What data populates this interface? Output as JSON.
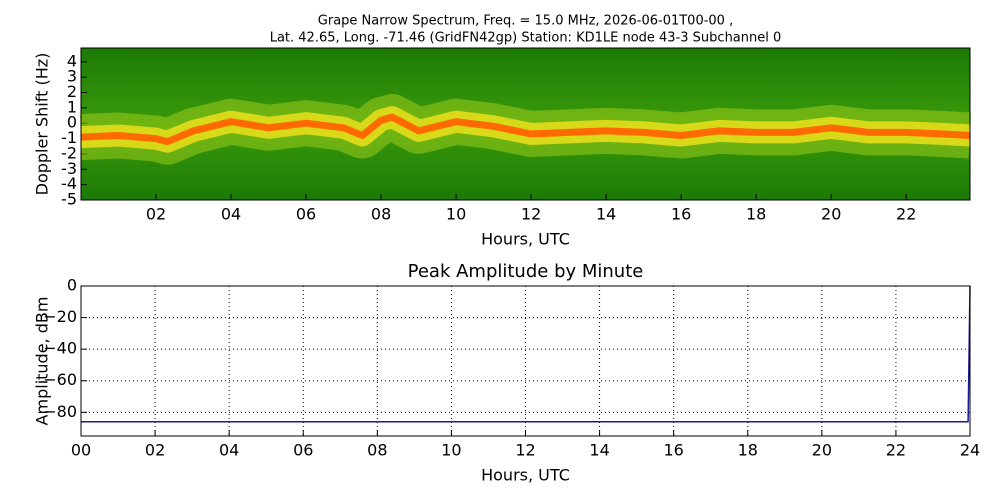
{
  "chart_data": [
    {
      "type": "spectrogram",
      "title": "Grape Narrow Spectrum, Freq. = 15.0 MHz, 2026-06-01T00-00 ,",
      "subtitle": "Lat.  42.65, Long. -71.46 (GridFN42gp) Station: KD1LE node 43-3 Subchannel 0",
      "x_label": "Hours, UTC",
      "y_label": "Doppler Shift (Hz)",
      "x": [
        0,
        1,
        2,
        2.3,
        3,
        4,
        5,
        6,
        7,
        7.5,
        8,
        8.3,
        9,
        10,
        11,
        12,
        13,
        14,
        15,
        16,
        17,
        18,
        19,
        20,
        21,
        22,
        23,
        23.7
      ],
      "values": [
        -0.9,
        -0.8,
        -1.0,
        -1.2,
        -0.5,
        0.1,
        -0.3,
        0,
        -0.3,
        -0.8,
        0.2,
        0.4,
        -0.5,
        0.1,
        -0.2,
        -0.7,
        -0.6,
        -0.5,
        -0.6,
        -0.8,
        -0.5,
        -0.6,
        -0.6,
        -0.3,
        -0.6,
        -0.6,
        -0.7,
        -0.8
      ],
      "color": "#ff6a00",
      "xlim": [
        0,
        23.7
      ],
      "ylim": [
        -5,
        4.9
      ],
      "xticks": [
        {
          "value": 2,
          "label": "02"
        },
        {
          "value": 4,
          "label": "04"
        },
        {
          "value": 6,
          "label": "06"
        },
        {
          "value": 8,
          "label": "08"
        },
        10,
        12,
        14,
        16,
        18,
        20,
        22
      ],
      "yticks": [
        4,
        3,
        2,
        1,
        0,
        -1,
        -2,
        -3,
        -4,
        -5
      ],
      "grid": false
    },
    {
      "type": "line",
      "title": "Peak Amplitude by Minute",
      "x_label": "Hours, UTC",
      "y_label": "Amplitude, dBm",
      "x": [
        0,
        6,
        12,
        18,
        23.95,
        24
      ],
      "values": [
        -86,
        -86,
        -86,
        -86,
        -86,
        0
      ],
      "color": "#1a1a8c",
      "xlim": [
        0,
        24
      ],
      "ylim": [
        -95,
        0
      ],
      "xticks": [
        {
          "value": 0,
          "label": "00"
        },
        {
          "value": 2,
          "label": "02"
        },
        {
          "value": 4,
          "label": "04"
        },
        {
          "value": 6,
          "label": "06"
        },
        {
          "value": 8,
          "label": "08"
        },
        10,
        12,
        14,
        16,
        18,
        20,
        22,
        24
      ],
      "yticks": [
        0,
        {
          "value": -20,
          "label": "−20"
        },
        {
          "value": -40,
          "label": "−40"
        },
        {
          "value": -60,
          "label": "−60"
        },
        {
          "value": -80,
          "label": "−80"
        }
      ],
      "grid": true
    }
  ]
}
